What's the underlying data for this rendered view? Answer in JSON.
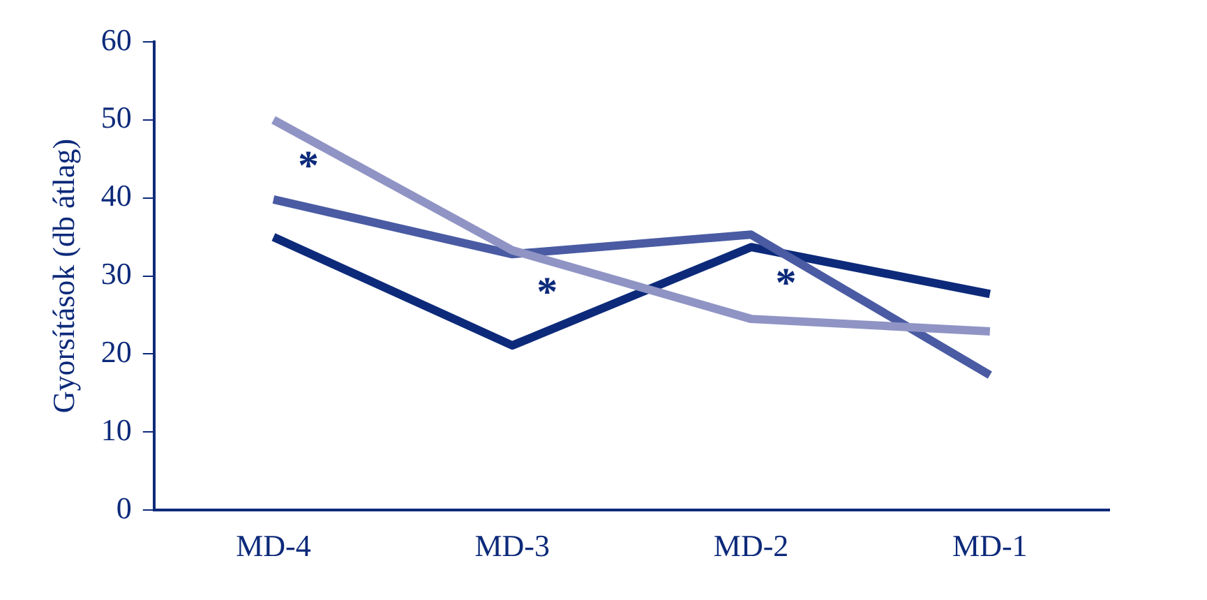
{
  "chart_data": {
    "type": "line",
    "ylabel": "Gyorsítások (db átlag)",
    "categories": [
      "MD-4",
      "MD-3",
      "MD-2",
      "MD-1"
    ],
    "series": [
      {
        "color": "#8f94c4",
        "values": [
          50,
          33.3,
          24.5,
          22.9
        ]
      },
      {
        "color": "#4a5ba3",
        "values": [
          39.8,
          32.8,
          35.3,
          17.3
        ]
      },
      {
        "color": "#0d2a7a",
        "values": [
          35,
          21.1,
          33.7,
          27.7
        ]
      }
    ],
    "ylim": [
      0,
      60
    ],
    "yticks": [
      0,
      10,
      20,
      30,
      40,
      50,
      60
    ],
    "grid": false,
    "legend": false,
    "marker": "none",
    "line_style": "solid",
    "annotations": [
      "*",
      "*",
      "*"
    ]
  }
}
